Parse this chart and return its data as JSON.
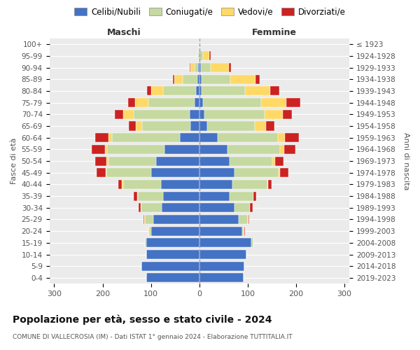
{
  "age_groups": [
    "0-4",
    "5-9",
    "10-14",
    "15-19",
    "20-24",
    "25-29",
    "30-34",
    "35-39",
    "40-44",
    "45-49",
    "50-54",
    "55-59",
    "60-64",
    "65-69",
    "70-74",
    "75-79",
    "80-84",
    "85-89",
    "90-94",
    "95-99",
    "100+"
  ],
  "birth_years": [
    "2019-2023",
    "2014-2018",
    "2009-2013",
    "2004-2008",
    "1999-2003",
    "1994-1998",
    "1989-1993",
    "1984-1988",
    "1979-1983",
    "1974-1978",
    "1969-1973",
    "1964-1968",
    "1959-1963",
    "1954-1958",
    "1949-1953",
    "1944-1948",
    "1939-1943",
    "1934-1938",
    "1929-1933",
    "1924-1928",
    "≤ 1923"
  ],
  "colors": {
    "celibi": "#4472c4",
    "coniugati": "#c5d9a0",
    "vedovi": "#ffd966",
    "divorziati": "#cc2222"
  },
  "males": {
    "celibi": [
      110,
      120,
      110,
      110,
      100,
      95,
      78,
      75,
      80,
      100,
      90,
      72,
      40,
      18,
      20,
      10,
      7,
      4,
      2,
      1,
      0
    ],
    "coniugati": [
      0,
      0,
      0,
      3,
      4,
      18,
      42,
      52,
      78,
      92,
      98,
      118,
      140,
      100,
      115,
      95,
      68,
      30,
      8,
      1,
      0
    ],
    "vedovi": [
      0,
      0,
      0,
      0,
      1,
      1,
      1,
      1,
      2,
      2,
      4,
      5,
      8,
      14,
      22,
      28,
      25,
      18,
      8,
      2,
      0
    ],
    "divorziati": [
      0,
      0,
      0,
      0,
      1,
      2,
      5,
      8,
      8,
      18,
      24,
      28,
      28,
      14,
      18,
      14,
      8,
      3,
      2,
      0,
      0
    ]
  },
  "females": {
    "celibi": [
      92,
      93,
      97,
      108,
      88,
      82,
      72,
      63,
      68,
      72,
      63,
      58,
      38,
      16,
      10,
      8,
      5,
      4,
      3,
      1,
      0
    ],
    "coniugati": [
      0,
      0,
      0,
      4,
      4,
      18,
      32,
      48,
      72,
      92,
      88,
      108,
      125,
      98,
      125,
      120,
      90,
      60,
      20,
      6,
      1
    ],
    "vedovi": [
      0,
      0,
      0,
      0,
      1,
      1,
      1,
      1,
      2,
      3,
      5,
      9,
      14,
      23,
      38,
      52,
      52,
      52,
      38,
      14,
      1
    ],
    "divorziati": [
      0,
      0,
      0,
      0,
      1,
      2,
      5,
      5,
      8,
      17,
      18,
      24,
      28,
      18,
      18,
      28,
      18,
      8,
      5,
      2,
      0
    ]
  },
  "title": "Popolazione per età, sesso e stato civile - 2024",
  "subtitle": "COMUNE DI VALLECROSIA (IM) - Dati ISTAT 1° gennaio 2024 - Elaborazione TUTTITALIA.IT",
  "xlabel_left": "Maschi",
  "xlabel_right": "Femmine",
  "ylabel_left": "Fasce di età",
  "ylabel_right": "Anni di nascita",
  "xlim": 310,
  "background_color": "#ffffff",
  "plot_bg_color": "#ebebeb",
  "legend_labels": [
    "Celibi/Nubili",
    "Coniugati/e",
    "Vedovi/e",
    "Divorziati/e"
  ]
}
